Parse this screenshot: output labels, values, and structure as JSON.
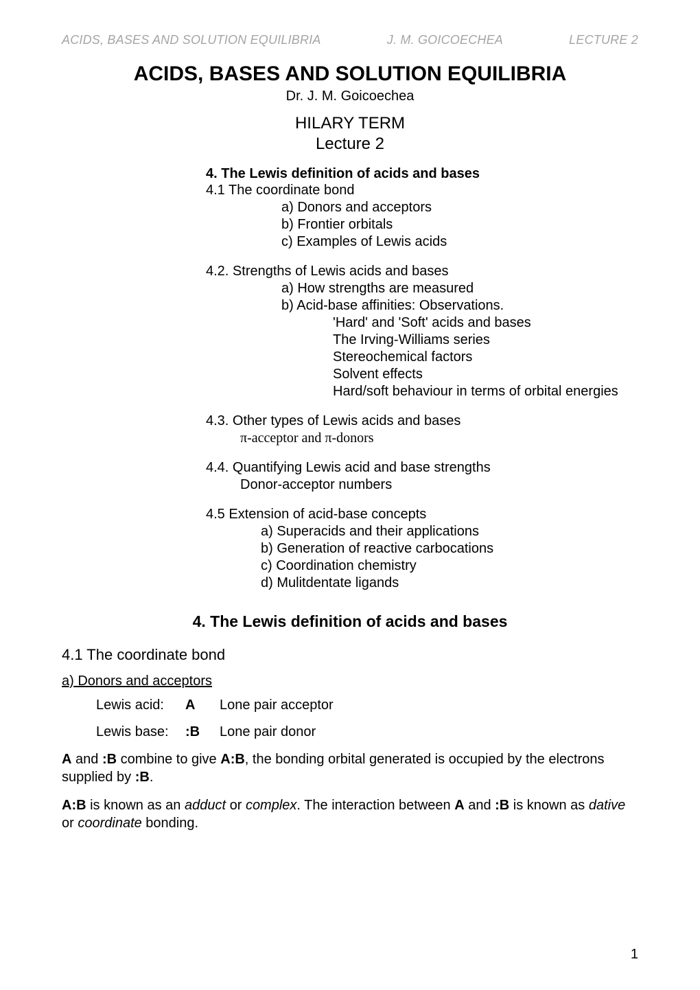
{
  "colors": {
    "background": "#ffffff",
    "text": "#000000",
    "header_text": "#a5a5a5"
  },
  "typography": {
    "body_font": "Arial",
    "body_size_pt": 15,
    "title_size_pt": 23,
    "header_italic": true
  },
  "header": {
    "left": "ACIDS, BASES AND SOLUTION EQUILIBRIA",
    "center": "J. M. GOICOECHEA",
    "right": "LECTURE 2"
  },
  "title": "ACIDS, BASES AND SOLUTION EQUILIBRIA",
  "author": "Dr. J. M. Goicoechea",
  "term": "HILARY TERM",
  "lecture": "Lecture 2",
  "outline": {
    "section4_heading": "4.  The Lewis definition of acids and bases",
    "s41": "4.1  The coordinate bond",
    "s41a": "a) Donors and acceptors",
    "s41b": "b) Frontier orbitals",
    "s41c": "c) Examples of Lewis acids",
    "s42": "4.2.  Strengths of Lewis acids and bases",
    "s42a": "a) How strengths are measured",
    "s42b": "b) Acid-base affinities: Observations.",
    "s42b1": "'Hard' and 'Soft' acids and bases",
    "s42b2": "The Irving-Williams series",
    "s42b3": "Stereochemical factors",
    "s42b4": "Solvent effects",
    "s42b5": "Hard/soft behaviour in terms of orbital energies",
    "s43": "4.3.  Other types of Lewis acids and bases",
    "s43a": "π-acceptor and π-donors",
    "s44": "4.4.  Quantifying Lewis acid and base strengths",
    "s44a": "Donor-acceptor numbers",
    "s45": "4.5  Extension of acid-base concepts",
    "s45a": "a) Superacids and their applications",
    "s45b": "b) Generation of reactive carbocations",
    "s45c": "c) Coordination chemistry",
    "s45d": "d) Mulitdentate ligands"
  },
  "section_title": "4.  The Lewis definition of acids and bases",
  "subsection_41": "4.1 The coordinate bond",
  "subsub_a": "a) Donors and acceptors",
  "defs": {
    "row1": {
      "label": "Lewis acid:",
      "sym": "A",
      "text": "Lone pair acceptor"
    },
    "row2": {
      "label": "Lewis base:",
      "sym": ":B",
      "text": "Lone pair donor"
    }
  },
  "para1_pre": "",
  "para1": {
    "t1": "A",
    "t2": " and ",
    "t3": ":B",
    "t4": " combine to give ",
    "t5": "A:B",
    "t6": ", the bonding orbital generated is occupied by the electrons supplied by ",
    "t7": ":B",
    "t8": "."
  },
  "para2": {
    "t1": "A:B",
    "t2": " is known as an ",
    "t3": "adduct",
    "t4": " or ",
    "t5": "complex",
    "t6": ".  The interaction between ",
    "t7": "A",
    "t8": " and ",
    "t9": ":B",
    "t10": " is known as ",
    "t11": "dative",
    "t12": " or ",
    "t13": "coordinate",
    "t14": " bonding."
  },
  "page_number": "1"
}
